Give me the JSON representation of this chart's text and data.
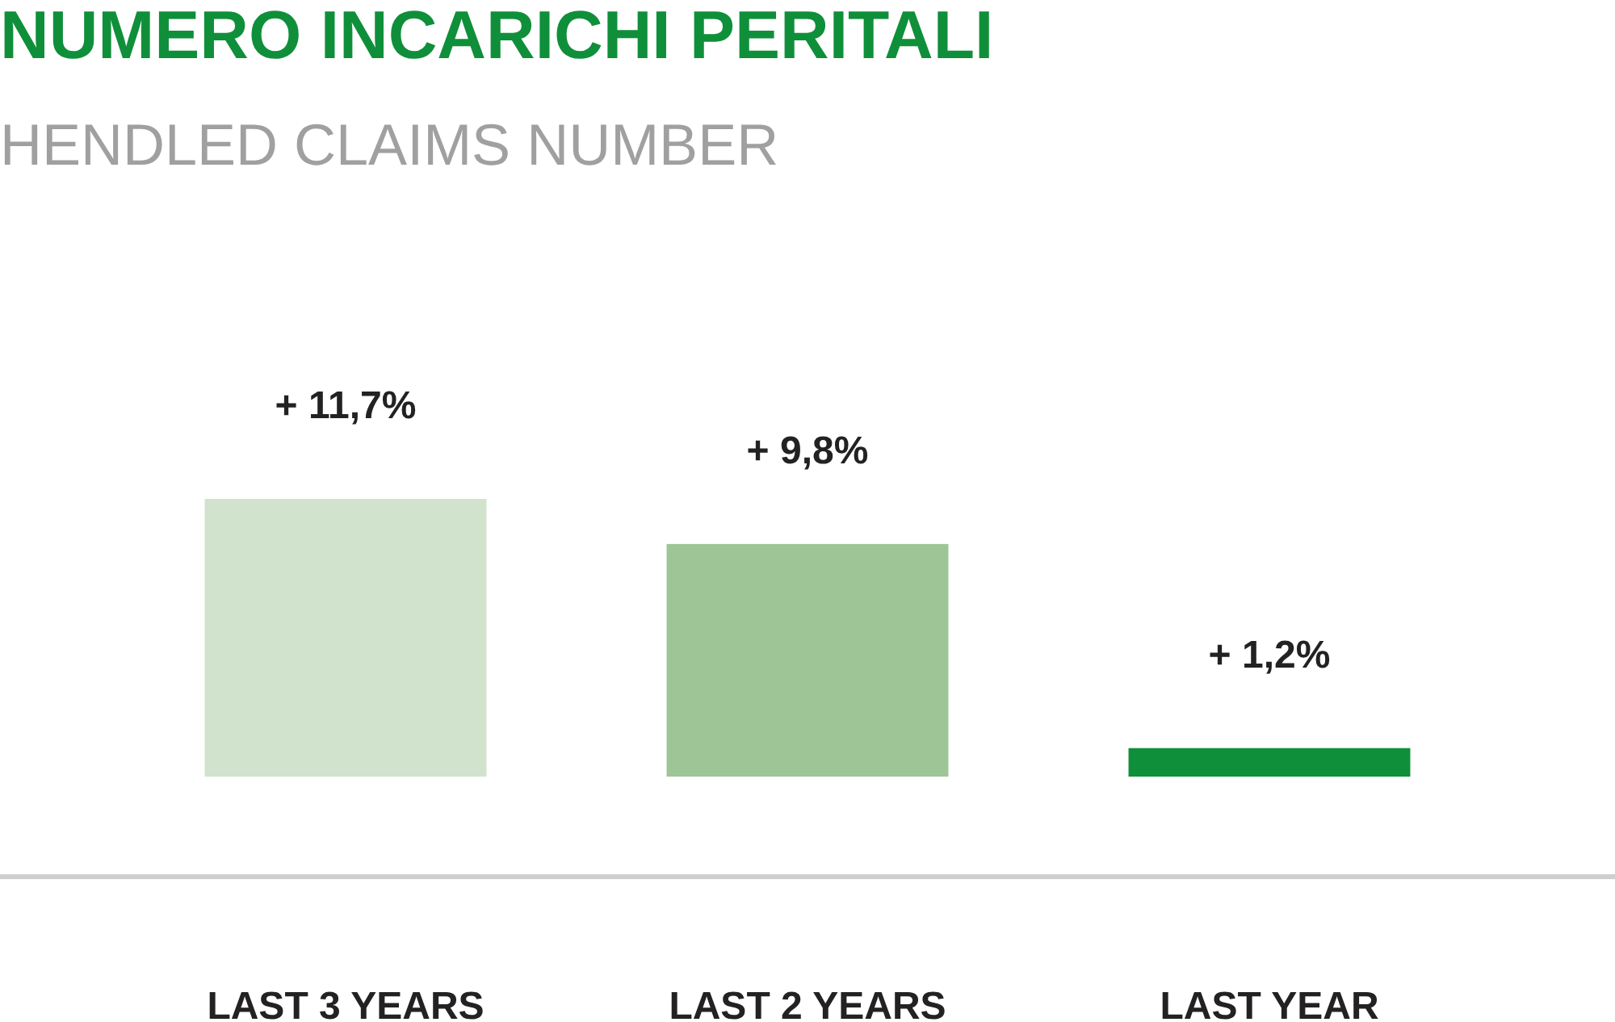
{
  "chart_data": {
    "type": "bar",
    "title": "NUMERO INCARICHI PERITALI",
    "subtitle": "HENDLED CLAIMS NUMBER",
    "categories": [
      "LAST 3 YEARS",
      "LAST 2 YEARS",
      "LAST YEAR"
    ],
    "values": [
      11.7,
      9.8,
      1.2
    ],
    "colors": [
      "#d1e3cc",
      "#9dc596",
      "#0f8f3a"
    ],
    "value_labels": [
      "+ 11,7%",
      "+ 9,8%",
      "+ 1,2%"
    ]
  }
}
